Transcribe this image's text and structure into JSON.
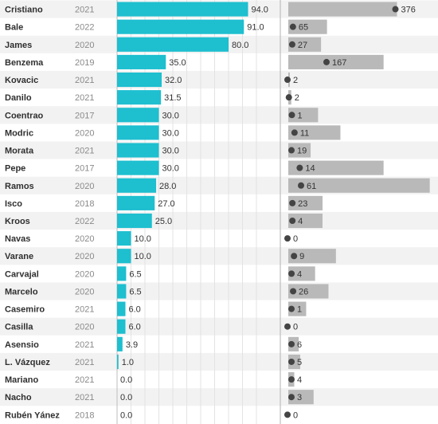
{
  "chart_data": [
    {
      "type": "bar",
      "orientation": "horizontal",
      "value_format": "0.0",
      "bar_color": "#1ebfcf",
      "xlim": [
        0,
        100
      ],
      "grid": true,
      "players": [
        "Cristiano",
        "Bale",
        "James",
        "Benzema",
        "Kovacic",
        "Danilo",
        "Coentrao",
        "Modric",
        "Morata",
        "Pepe",
        "Ramos",
        "Isco",
        "Kroos",
        "Navas",
        "Varane",
        "Carvajal",
        "Marcelo",
        "Casemiro",
        "Casilla",
        "Asensio",
        "L. Vázquez",
        "Mariano",
        "Nacho",
        "Rubén Yánez"
      ],
      "years": [
        "2021",
        "2022",
        "2020",
        "2019",
        "2021",
        "2021",
        "2017",
        "2020",
        "2021",
        "2017",
        "2020",
        "2018",
        "2022",
        "2020",
        "2020",
        "2020",
        "2020",
        "2021",
        "2020",
        "2021",
        "2021",
        "2021",
        "2021",
        "2018"
      ],
      "values": [
        94.0,
        91.0,
        80.0,
        35.0,
        32.0,
        31.5,
        30.0,
        30.0,
        30.0,
        30.0,
        28.0,
        27.0,
        25.0,
        10.0,
        10.0,
        6.5,
        6.5,
        6.0,
        6.0,
        3.9,
        1.0,
        0.0,
        0.0,
        0.0
      ]
    },
    {
      "type": "bar",
      "orientation": "horizontal",
      "bar_color": "#b9b9b9",
      "dot_color": "#444444",
      "grid": false,
      "values": [
        376,
        65,
        27,
        167,
        2,
        2,
        1,
        11,
        19,
        14,
        61,
        23,
        4,
        0,
        9,
        4,
        26,
        1,
        0,
        6,
        5,
        4,
        3,
        0
      ],
      "bar_extent": [
        0.73,
        0.26,
        0.22,
        0.64,
        0.01,
        0.02,
        0.2,
        0.35,
        0.15,
        0.64,
        0.95,
        0.23,
        0.23,
        0.0,
        0.32,
        0.18,
        0.27,
        0.12,
        0.0,
        0.07,
        0.08,
        0.04,
        0.17,
        0.0
      ]
    }
  ],
  "colors": {
    "row_alt": "#f2f2f2",
    "divider": "#bdbdbd",
    "grid": "#e3e3e3"
  }
}
